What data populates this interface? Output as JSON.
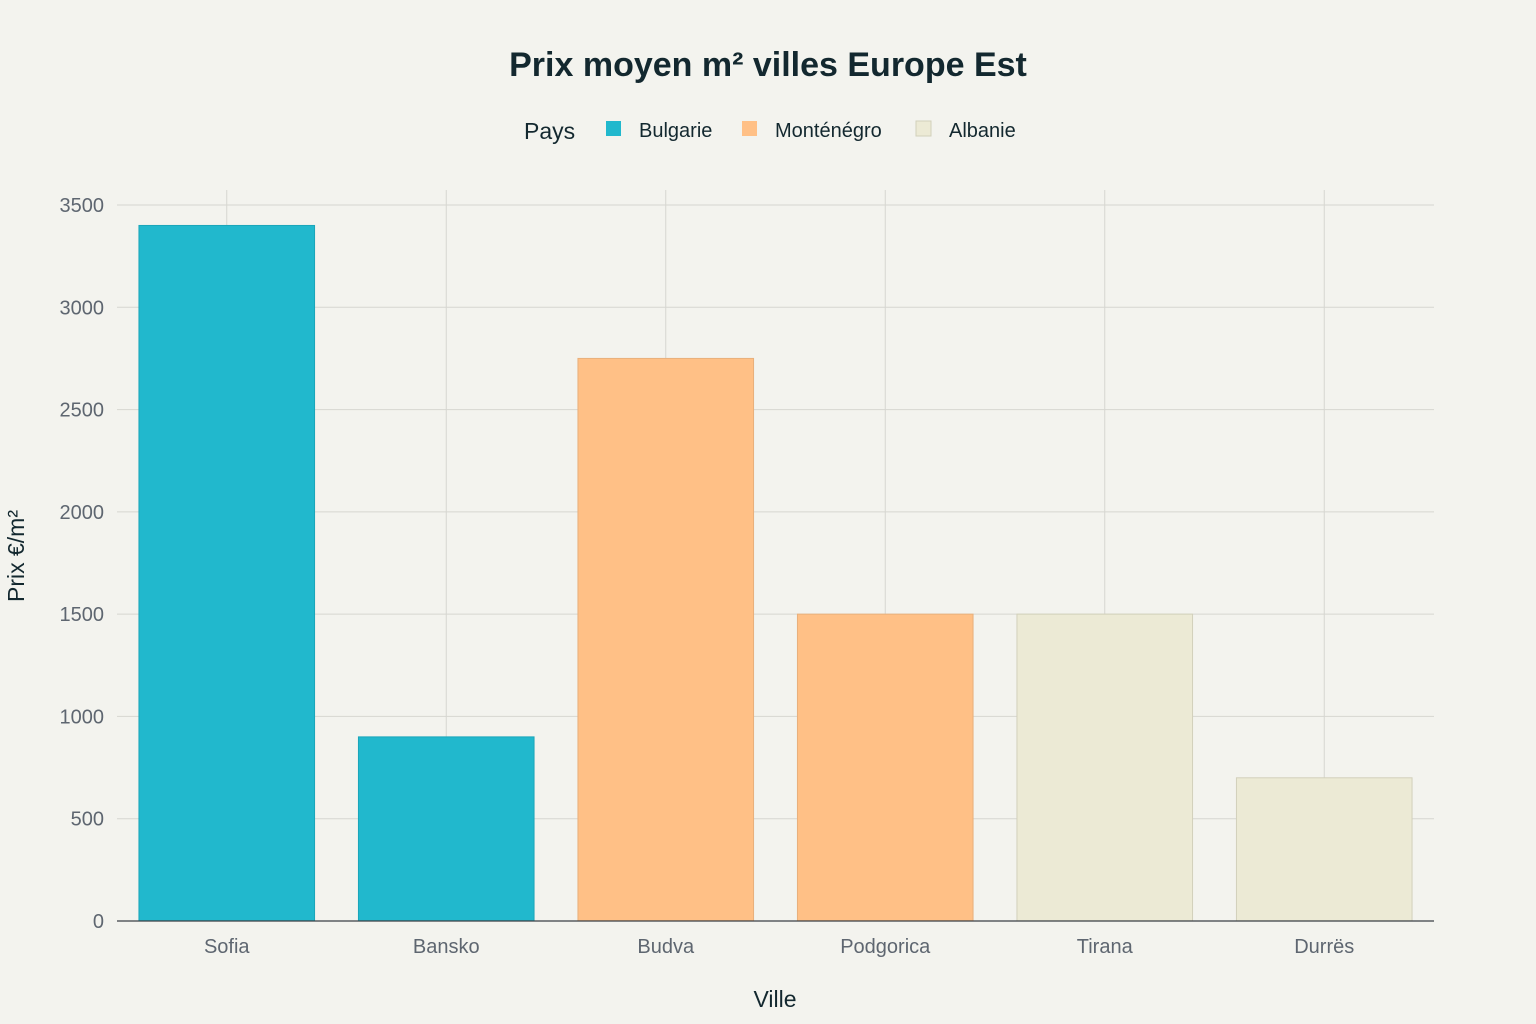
{
  "chart_data": {
    "type": "bar",
    "title": "Prix moyen m² villes Europe Est",
    "xlabel": "Ville",
    "ylabel": "Prix €/m²",
    "ylim": [
      0,
      3500
    ],
    "yticks": [
      0,
      500,
      1000,
      1500,
      2000,
      2500,
      3000,
      3500
    ],
    "grid": true,
    "legend": {
      "title": "Pays",
      "placement": "top-center",
      "entries": [
        {
          "name": "Bulgarie",
          "color": "#21b8cd"
        },
        {
          "name": "Monténégro",
          "color": "#ffc086"
        },
        {
          "name": "Albanie",
          "color": "#ecead5"
        }
      ]
    },
    "categories": [
      "Sofia",
      "Bansko",
      "Budva",
      "Podgorica",
      "Tirana",
      "Durrës"
    ],
    "values": [
      3400,
      900,
      2750,
      1500,
      1500,
      700
    ],
    "groups": [
      "Bulgarie",
      "Bulgarie",
      "Monténégro",
      "Monténégro",
      "Albanie",
      "Albanie"
    ]
  },
  "colors": {
    "background": "#f3f3ee",
    "Bulgarie": "#21b8cd",
    "Monténégro": "#ffc086",
    "Albanie": "#ecead5"
  }
}
